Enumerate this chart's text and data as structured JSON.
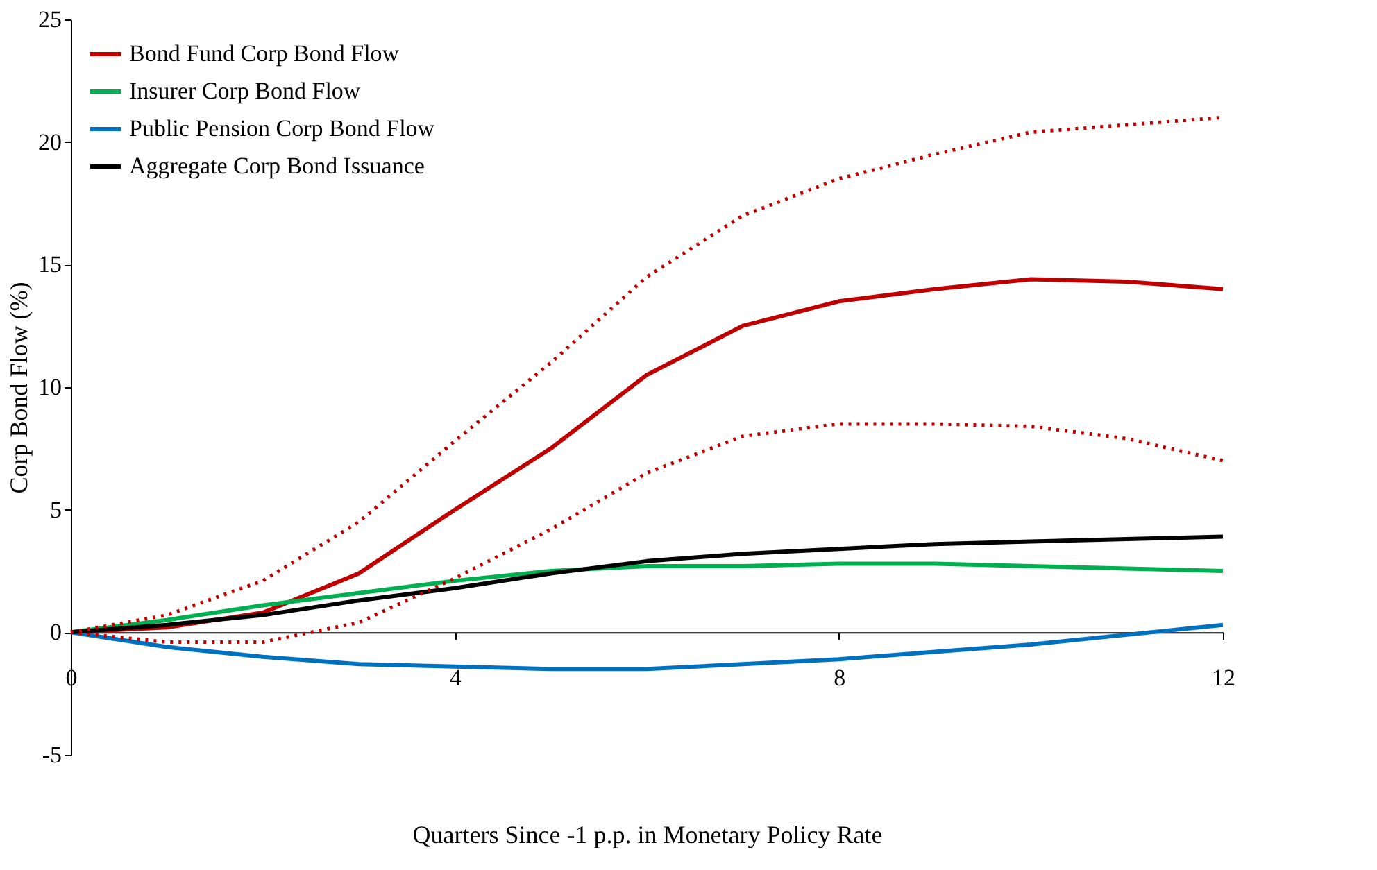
{
  "chart_data": {
    "type": "line",
    "xlabel": "Quarters Since -1 p.p. in Monetary Policy Rate",
    "ylabel": "Corp Bond Flow (%)",
    "x": [
      0,
      1,
      2,
      3,
      4,
      5,
      6,
      7,
      8,
      9,
      10,
      11,
      12
    ],
    "xlim": [
      0,
      12
    ],
    "xticks": [
      0,
      4,
      8,
      12
    ],
    "ylim": [
      -5,
      25
    ],
    "yticks": [
      -5,
      0,
      5,
      10,
      15,
      20,
      25
    ],
    "grid": false,
    "legend": "top left",
    "line_style": "solid",
    "marker": "none",
    "series": [
      {
        "name": "Bond Fund Corp Bond Flow",
        "color": "#c00000",
        "values": [
          0,
          0.2,
          0.8,
          2.4,
          5.0,
          7.5,
          10.5,
          12.5,
          13.5,
          14.0,
          14.4,
          14.3,
          14.0
        ]
      },
      {
        "name": "Insurer Corp Bond Flow",
        "color": "#00b050",
        "values": [
          0,
          0.5,
          1.1,
          1.6,
          2.1,
          2.5,
          2.7,
          2.7,
          2.8,
          2.8,
          2.7,
          2.6,
          2.5
        ]
      },
      {
        "name": "Public Pension Corp Bond Flow",
        "color": "#0070c0",
        "values": [
          0,
          -0.6,
          -1.0,
          -1.3,
          -1.4,
          -1.5,
          -1.5,
          -1.3,
          -1.1,
          -0.8,
          -0.5,
          -0.1,
          0.3
        ]
      },
      {
        "name": "Aggregate Corp Bond Issuance",
        "color": "#000000",
        "values": [
          0,
          0.3,
          0.7,
          1.3,
          1.8,
          2.4,
          2.9,
          3.2,
          3.4,
          3.6,
          3.7,
          3.8,
          3.9
        ]
      },
      {
        "color": "#c00000",
        "line_style": "dotted",
        "values": [
          0,
          0.7,
          2.1,
          4.5,
          7.8,
          11.0,
          14.5,
          17.0,
          18.5,
          19.5,
          20.4,
          20.7,
          21.0
        ]
      },
      {
        "color": "#c00000",
        "line_style": "dotted",
        "values": [
          0,
          -0.4,
          -0.4,
          0.4,
          2.2,
          4.2,
          6.5,
          8.0,
          8.5,
          8.5,
          8.4,
          7.9,
          7.0
        ]
      }
    ]
  }
}
